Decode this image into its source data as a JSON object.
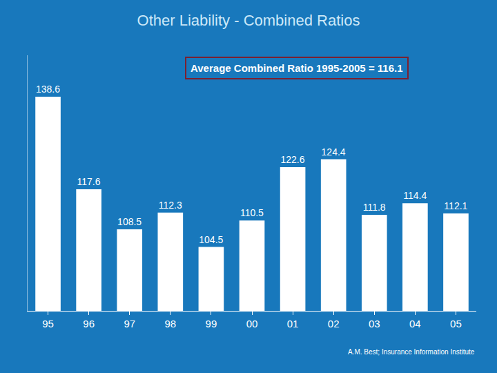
{
  "chart_data": {
    "type": "bar",
    "title": "Other Liability - Combined Ratios",
    "categories": [
      "95",
      "96",
      "97",
      "98",
      "99",
      "00",
      "01",
      "02",
      "03",
      "04",
      "05"
    ],
    "values": [
      138.6,
      117.6,
      108.5,
      112.3,
      104.5,
      110.5,
      122.6,
      124.4,
      111.8,
      114.4,
      112.1
    ],
    "color": "#ffffff",
    "ylim": [
      90,
      148
    ],
    "grid": false,
    "data_labels": true,
    "tick_labels": "x",
    "annotations": [
      "Average Combined Ratio 1995-2005 = 116.1",
      "A.M. Best; Insurance Information Institute"
    ]
  }
}
